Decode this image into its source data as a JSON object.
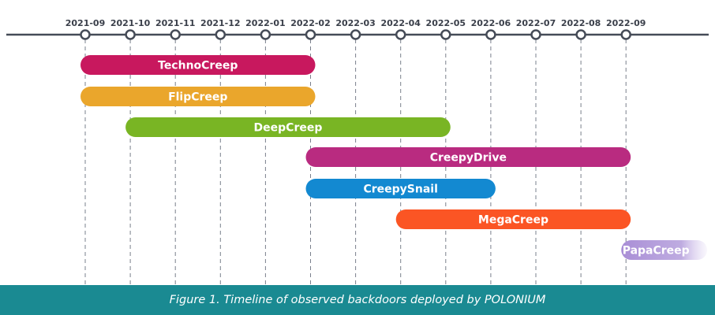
{
  "chart_data": {
    "type": "timeline",
    "x_ticks": [
      "2021-09",
      "2021-10",
      "2021-11",
      "2021-12",
      "2022-01",
      "2022-02",
      "2022-03",
      "2022-04",
      "2022-05",
      "2022-06",
      "2022-07",
      "2022-08",
      "2022-09"
    ],
    "bars": [
      {
        "name": "TechnoCreep",
        "start": "2021-09",
        "end": "2022-02",
        "color": "#c8185e"
      },
      {
        "name": "FlipCreep",
        "start": "2021-09",
        "end": "2022-02",
        "color": "#eaa62c"
      },
      {
        "name": "DeepCreep",
        "start": "2021-10",
        "end": "2022-05",
        "color": "#79b524"
      },
      {
        "name": "CreepyDrive",
        "start": "2022-02",
        "end": "2022-09",
        "color": "#b92b80"
      },
      {
        "name": "CreepySnail",
        "start": "2022-02",
        "end": "2022-06",
        "color": "#1389d1"
      },
      {
        "name": "MegaCreep",
        "start": "2022-04",
        "end": "2022-09",
        "color": "#fb5524"
      },
      {
        "name": "PapaCreep",
        "start": "2022-09",
        "end": "2022-10",
        "color": "#a98ed6"
      }
    ],
    "grid": true,
    "axis_color": "#454b57",
    "grid_color": "#7a808c"
  },
  "caption": "Figure 1. Timeline of observed backdoors deployed by POLONIUM",
  "colors": {
    "caption_bar": "#1a8a92",
    "background": "#ffffff"
  }
}
